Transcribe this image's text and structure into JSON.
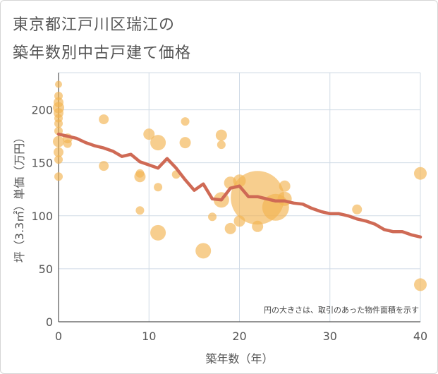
{
  "title_line1": "東京都江戸川区瑞江の",
  "title_line2": "築年数別中古戸建て価格",
  "chart_data": {
    "type": "scatter",
    "title": "東京都江戸川区瑞江の築年数別中古戸建て価格",
    "xlabel": "築年数（年）",
    "ylabel": "坪（3.3㎡）単価（万円）",
    "xlim": [
      0,
      40
    ],
    "ylim": [
      0,
      235
    ],
    "xticks": [
      0,
      10,
      20,
      30,
      40
    ],
    "yticks": [
      0,
      50,
      100,
      150,
      200
    ],
    "grid": true,
    "note": "円の大きさは、取引のあった物件面積を示す",
    "colors": {
      "bubble": "#f3b451",
      "line": "#cf6a55",
      "grid": "#d0dbe6",
      "axis": "#555555"
    },
    "bubbles": [
      {
        "x": 0,
        "y": 224,
        "s": 5
      },
      {
        "x": 0,
        "y": 213,
        "s": 6
      },
      {
        "x": 0,
        "y": 207,
        "s": 7
      },
      {
        "x": 0,
        "y": 202,
        "s": 8
      },
      {
        "x": 0,
        "y": 197,
        "s": 7
      },
      {
        "x": 0,
        "y": 192,
        "s": 6
      },
      {
        "x": 0,
        "y": 187,
        "s": 6
      },
      {
        "x": 0,
        "y": 180,
        "s": 6
      },
      {
        "x": 0,
        "y": 170,
        "s": 8
      },
      {
        "x": 0,
        "y": 160,
        "s": 7
      },
      {
        "x": 0,
        "y": 153,
        "s": 6
      },
      {
        "x": 0,
        "y": 137,
        "s": 6
      },
      {
        "x": 1,
        "y": 173,
        "s": 7
      },
      {
        "x": 1,
        "y": 168,
        "s": 6
      },
      {
        "x": 5,
        "y": 191,
        "s": 7
      },
      {
        "x": 5,
        "y": 147,
        "s": 7
      },
      {
        "x": 9,
        "y": 140,
        "s": 6
      },
      {
        "x": 9,
        "y": 137,
        "s": 8
      },
      {
        "x": 9,
        "y": 105,
        "s": 6
      },
      {
        "x": 10,
        "y": 177,
        "s": 8
      },
      {
        "x": 11,
        "y": 169,
        "s": 11
      },
      {
        "x": 11,
        "y": 127,
        "s": 6
      },
      {
        "x": 11,
        "y": 84,
        "s": 11
      },
      {
        "x": 13,
        "y": 139,
        "s": 6
      },
      {
        "x": 14,
        "y": 189,
        "s": 6
      },
      {
        "x": 14,
        "y": 169,
        "s": 8
      },
      {
        "x": 16,
        "y": 67,
        "s": 11
      },
      {
        "x": 17,
        "y": 99,
        "s": 6
      },
      {
        "x": 18,
        "y": 176,
        "s": 8
      },
      {
        "x": 18,
        "y": 167,
        "s": 6
      },
      {
        "x": 18,
        "y": 115,
        "s": 11
      },
      {
        "x": 19,
        "y": 131,
        "s": 9
      },
      {
        "x": 19,
        "y": 88,
        "s": 8
      },
      {
        "x": 20,
        "y": 133,
        "s": 9
      },
      {
        "x": 20,
        "y": 95,
        "s": 8
      },
      {
        "x": 22,
        "y": 117,
        "s": 38
      },
      {
        "x": 22,
        "y": 90,
        "s": 8
      },
      {
        "x": 24,
        "y": 108,
        "s": 19
      },
      {
        "x": 25,
        "y": 128,
        "s": 8
      },
      {
        "x": 25,
        "y": 116,
        "s": 10
      },
      {
        "x": 33,
        "y": 106,
        "s": 7
      },
      {
        "x": 40,
        "y": 140,
        "s": 9
      },
      {
        "x": 40,
        "y": 35,
        "s": 9
      }
    ],
    "trend": {
      "x": [
        0,
        2,
        3,
        4,
        5,
        6,
        7,
        8,
        9,
        10,
        11,
        12,
        13,
        14,
        15,
        16,
        17,
        18,
        19,
        20,
        21,
        22,
        23,
        24,
        25,
        26,
        27,
        28,
        29,
        30,
        31,
        32,
        33,
        34,
        35,
        36,
        37,
        38,
        39,
        40
      ],
      "y": [
        177,
        173,
        169,
        166,
        164,
        161,
        156,
        158,
        151,
        148,
        145,
        154,
        145,
        134,
        124,
        130,
        116,
        115,
        126,
        128,
        118,
        118,
        116,
        114,
        114,
        112,
        111,
        107,
        104,
        102,
        102,
        100,
        97,
        95,
        92,
        87,
        85,
        85,
        82,
        80
      ]
    }
  }
}
